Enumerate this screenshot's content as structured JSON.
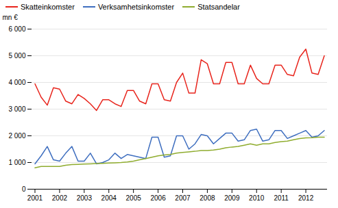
{
  "chart_data": {
    "type": "line",
    "ylabel": "mn €",
    "categories": [
      "2001",
      null,
      null,
      null,
      "2002",
      null,
      null,
      null,
      "2003",
      null,
      null,
      null,
      "2004",
      null,
      null,
      null,
      "2005",
      null,
      null,
      null,
      "2006",
      null,
      null,
      null,
      "2007",
      null,
      null,
      null,
      "2008",
      null,
      null,
      null,
      "2009",
      null,
      null,
      null,
      "2010",
      null,
      null,
      null,
      "2011",
      null,
      null,
      null,
      "2012",
      null,
      null,
      null
    ],
    "series": [
      {
        "name": "Skatteinkomster",
        "color": "#e8241c",
        "values": [
          3950,
          3450,
          3150,
          3800,
          3750,
          3300,
          3200,
          3550,
          3400,
          3200,
          2950,
          3350,
          3350,
          3200,
          3100,
          3700,
          3700,
          3300,
          3200,
          3950,
          3950,
          3350,
          3300,
          4000,
          4350,
          3600,
          3600,
          4850,
          4700,
          3950,
          3950,
          4750,
          4750,
          3950,
          3950,
          4650,
          4150,
          3950,
          3950,
          4650,
          4650,
          4300,
          4250,
          4950,
          5250,
          4350,
          4300,
          5000
        ]
      },
      {
        "name": "Verksamhetsinkomster",
        "color": "#3e6ebf",
        "values": [
          950,
          1250,
          1600,
          1100,
          1050,
          1350,
          1600,
          1050,
          1050,
          1350,
          950,
          1000,
          1100,
          1350,
          1150,
          1300,
          1250,
          1200,
          1150,
          1950,
          1950,
          1200,
          1250,
          2000,
          2000,
          1500,
          1700,
          2050,
          2000,
          1700,
          1900,
          2100,
          2100,
          1800,
          1850,
          2200,
          2250,
          1800,
          1850,
          2200,
          2200,
          1900,
          2000,
          2100,
          2200,
          1950,
          2000,
          2200
        ]
      },
      {
        "name": "Statsandelar",
        "color": "#8fac2e",
        "values": [
          800,
          850,
          850,
          850,
          850,
          900,
          920,
          930,
          940,
          950,
          960,
          970,
          980,
          990,
          1000,
          1020,
          1050,
          1100,
          1150,
          1200,
          1250,
          1280,
          1300,
          1350,
          1380,
          1400,
          1420,
          1450,
          1450,
          1470,
          1500,
          1550,
          1580,
          1600,
          1650,
          1700,
          1650,
          1700,
          1700,
          1750,
          1780,
          1800,
          1850,
          1900,
          1920,
          1930,
          1950,
          1950
        ]
      }
    ],
    "ylim": [
      0,
      6000
    ],
    "yticks": [
      0,
      {
        "value": 1000,
        "label": "1 000"
      },
      {
        "value": 2000,
        "label": "2 000"
      },
      {
        "value": 3000,
        "label": "3 000"
      },
      {
        "value": 4000,
        "label": "4 000"
      },
      {
        "value": 5000,
        "label": "5 000"
      },
      {
        "value": 6000,
        "label": "6 000"
      }
    ],
    "grid": true,
    "legend": "upper left"
  }
}
